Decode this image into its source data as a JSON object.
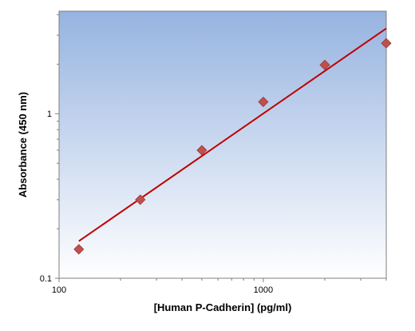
{
  "chart_data": {
    "type": "scatter",
    "title": "",
    "xlabel": "[Human P-Cadherin] (pg/ml)",
    "ylabel": "Absorbance (450 nm)",
    "x_scale": "log",
    "y_scale": "log",
    "xlim": [
      100,
      4000
    ],
    "ylim": [
      0.1,
      4.2
    ],
    "x_ticks": [
      {
        "value": 100,
        "label": "100"
      },
      {
        "value": 1000,
        "label": "1000"
      }
    ],
    "y_ticks": [
      {
        "value": 0.1,
        "label": "0.1"
      },
      {
        "value": 1,
        "label": "1"
      }
    ],
    "grid": false,
    "background": "gradient",
    "series": [
      {
        "kind": "points",
        "marker": "diamond",
        "color": "#C0504D",
        "x": [
          125,
          250,
          500,
          1000,
          2000,
          4000
        ],
        "y": [
          0.15,
          0.3,
          0.6,
          1.18,
          1.98,
          2.68
        ]
      },
      {
        "kind": "fit-line",
        "color": "#C00000",
        "x": [
          125,
          4000
        ],
        "y": [
          0.168,
          3.3
        ]
      }
    ],
    "colors": {
      "plot_bg_top": "#96B3E0",
      "plot_bg_bottom": "#FFFFFF",
      "marker": "#C0504D",
      "marker_stroke": "#9B3B38",
      "fit_line": "#C00000"
    }
  }
}
